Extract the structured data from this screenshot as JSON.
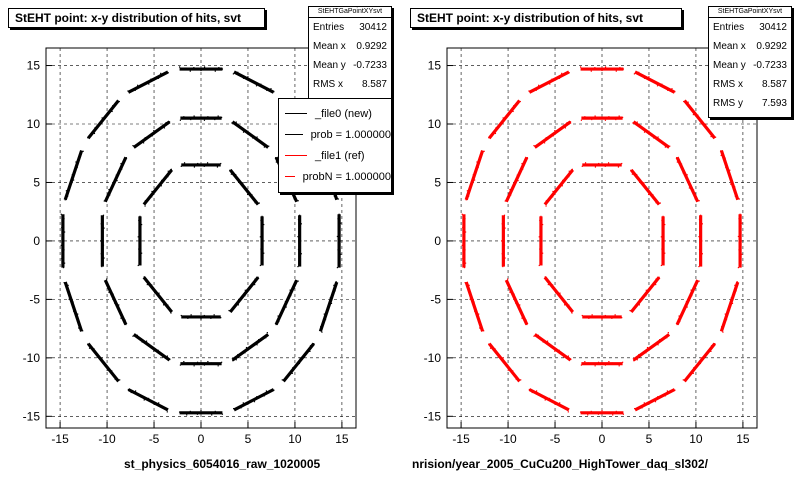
{
  "colors": {
    "new": "#000000",
    "ref": "#ff0000"
  },
  "chart_data": [
    {
      "type": "scatter",
      "title": "StEHT point: x-y distribution of hits, svt",
      "xlim": [
        -16.5,
        16.5
      ],
      "ylim": [
        -16,
        16.5
      ],
      "x_ticks": [
        -15,
        -10,
        -5,
        0,
        5,
        10,
        15
      ],
      "y_ticks": [
        -15,
        -10,
        -5,
        0,
        5,
        10,
        15
      ],
      "grid": true,
      "color": "#000000",
      "stats": {
        "name": "StEHTGaPointXYsvt",
        "rows": [
          {
            "label": "Entries",
            "value": "30412"
          },
          {
            "label": "Mean x",
            "value": "0.9292"
          },
          {
            "label": "Mean y",
            "value": "-0.7233"
          },
          {
            "label": "RMS x",
            "value": "8.587"
          }
        ]
      },
      "legend": {
        "placement": "top-right",
        "entries": [
          {
            "label": "_file0 (new)",
            "color": "#000000"
          },
          {
            "label": "prob = 1.000000",
            "color": "#000000"
          },
          {
            "label": "_file1 (ref)",
            "color": "#ff0000"
          },
          {
            "label": "probN = 1.000000",
            "color": "#ff0000"
          }
        ]
      },
      "layers": [
        {
          "radius": 6.5,
          "segments": 8
        },
        {
          "radius": 10.5,
          "segments": 12
        },
        {
          "radius": 14.7,
          "segments": 16
        }
      ]
    },
    {
      "type": "scatter",
      "title": "StEHT point: x-y distribution of hits, svt",
      "xlim": [
        -16.5,
        16.5
      ],
      "ylim": [
        -16,
        16.5
      ],
      "x_ticks": [
        -15,
        -10,
        -5,
        0,
        5,
        10,
        15
      ],
      "y_ticks": [
        -15,
        -10,
        -5,
        0,
        5,
        10,
        15
      ],
      "grid": true,
      "color": "#ff0000",
      "stats": {
        "name": "StEHTGaPointXYsvt",
        "rows": [
          {
            "label": "Entries",
            "value": "30412"
          },
          {
            "label": "Mean x",
            "value": "0.9292"
          },
          {
            "label": "Mean y",
            "value": "-0.7233"
          },
          {
            "label": "RMS x",
            "value": "8.587"
          },
          {
            "label": "RMS y",
            "value": "7.593"
          }
        ]
      },
      "layers": [
        {
          "radius": 6.5,
          "segments": 8
        },
        {
          "radius": 10.5,
          "segments": 12
        },
        {
          "radius": 14.7,
          "segments": 16
        }
      ]
    }
  ],
  "labels": {
    "left_file": "st_physics_6054016_raw_1020005",
    "right_file": "nrision/year_2005_CuCu200_HighTower_daq_sl302/"
  }
}
